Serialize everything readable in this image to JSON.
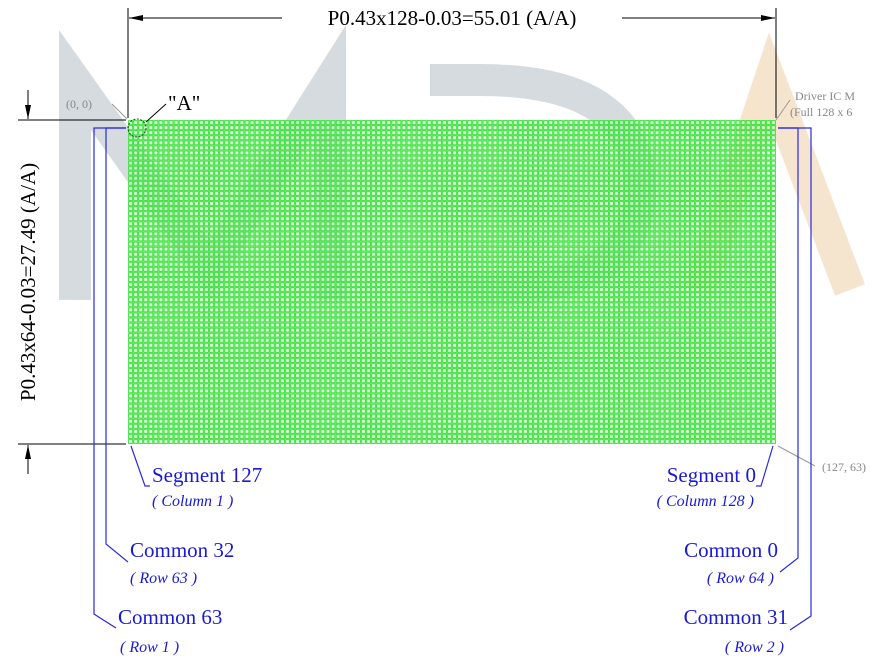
{
  "dimensions": {
    "width": "P0.43x128-0.03=55.01 (A/A)",
    "height": "P0.43x64-0.03=27.49 (A/A)"
  },
  "markers": {
    "origin": "(0, 0)",
    "detail": "\"A\"",
    "end": "(127, 63)",
    "driver_ic": [
      "Driver IC M",
      "(Full 128 x 6"
    ]
  },
  "left_labels": [
    {
      "title": "Segment 127",
      "subtitle": "( Column 1 )"
    },
    {
      "title": "Common 32",
      "subtitle": "( Row 63 )"
    },
    {
      "title": "Common 63",
      "subtitle": "( Row 1 )"
    }
  ],
  "right_labels": [
    {
      "title": "Segment 0",
      "subtitle": "( Column 128 )"
    },
    {
      "title": "Common 0",
      "subtitle": "( Row 64 )"
    },
    {
      "title": "Common 31",
      "subtitle": "( Row 2 )"
    }
  ]
}
